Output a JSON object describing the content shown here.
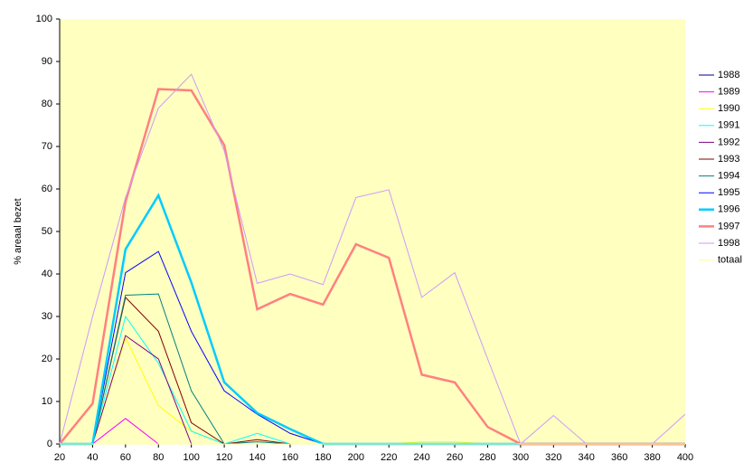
{
  "chart_data": {
    "type": "line",
    "y_label": "% areaal bezet",
    "x": [
      20,
      40,
      60,
      80,
      100,
      120,
      140,
      160,
      180,
      200,
      220,
      240,
      260,
      280,
      300,
      320,
      340,
      360,
      380,
      400
    ],
    "xlim": [
      20,
      400
    ],
    "xticks": [
      20,
      40,
      60,
      80,
      100,
      120,
      140,
      160,
      180,
      200,
      220,
      240,
      260,
      280,
      300,
      320,
      340,
      360,
      380,
      400
    ],
    "ylim": [
      0,
      100
    ],
    "yticks": [
      0,
      10,
      20,
      30,
      40,
      50,
      60,
      70,
      80,
      90,
      100
    ],
    "plot_background": "#ffffc0",
    "series": [
      {
        "name": "1988",
        "color": "#000080",
        "line_width": 1,
        "values": [
          0,
          0,
          0,
          0,
          0,
          0,
          0,
          0,
          0,
          0,
          0,
          0,
          0,
          0,
          0,
          0,
          0,
          0,
          0,
          0
        ]
      },
      {
        "name": "1989",
        "color": "#ff00ff",
        "line_width": 1,
        "values": [
          0,
          0,
          6,
          0,
          0,
          0,
          0,
          0,
          0,
          0,
          0,
          0,
          0,
          0,
          0,
          0,
          0,
          0,
          0,
          0
        ]
      },
      {
        "name": "1990",
        "color": "#ffff00",
        "line_width": 1,
        "values": [
          0,
          0,
          25,
          9,
          3,
          0,
          0,
          0,
          0,
          0,
          0,
          0.5,
          0.5,
          0,
          0,
          0,
          0,
          0,
          0,
          0
        ]
      },
      {
        "name": "1991",
        "color": "#00ffff",
        "line_width": 1,
        "values": [
          0,
          0,
          30,
          19,
          3,
          0,
          2.5,
          0,
          0,
          0,
          0,
          0,
          0,
          0,
          0,
          0,
          0,
          0,
          0,
          0
        ]
      },
      {
        "name": "1992",
        "color": "#800080",
        "line_width": 1,
        "values": [
          0,
          0,
          25.5,
          20,
          0,
          0,
          0,
          0,
          0,
          0,
          0,
          0,
          0,
          0,
          0,
          0,
          0,
          0,
          0,
          0
        ]
      },
      {
        "name": "1993",
        "color": "#800000",
        "line_width": 1,
        "values": [
          0,
          0,
          34.5,
          26.5,
          5,
          0,
          1,
          0,
          0,
          0,
          0,
          0,
          0,
          0,
          0,
          0,
          0,
          0,
          0,
          0
        ]
      },
      {
        "name": "1994",
        "color": "#008080",
        "line_width": 1,
        "values": [
          0,
          0,
          35,
          35.3,
          12.5,
          0,
          0.5,
          0,
          0,
          0,
          0,
          0,
          0,
          0,
          0,
          0,
          0,
          0,
          0,
          0
        ]
      },
      {
        "name": "1995",
        "color": "#0000ff",
        "line_width": 1,
        "values": [
          0,
          0,
          40.3,
          45.3,
          26.5,
          12.5,
          7,
          2.5,
          0,
          0,
          0,
          0,
          0,
          0,
          0,
          0,
          0,
          0,
          0,
          0
        ]
      },
      {
        "name": "1996",
        "color": "#00ccff",
        "line_width": 2.5,
        "values": [
          0,
          0,
          45.8,
          58.5,
          38,
          14.5,
          7.3,
          3.5,
          0,
          0,
          0,
          0,
          0,
          0,
          0,
          0,
          0,
          0,
          0,
          0
        ]
      },
      {
        "name": "1997",
        "color": "#ff8080",
        "line_width": 2.5,
        "values": [
          0,
          9.5,
          57,
          83.5,
          83.2,
          70.3,
          31.7,
          35.3,
          32.8,
          47,
          43.8,
          16.3,
          14.5,
          4,
          0,
          0,
          0,
          0,
          0,
          0
        ]
      },
      {
        "name": "1998",
        "color": "#cc99ff",
        "line_width": 1,
        "values": [
          0,
          30,
          58,
          79,
          87,
          69,
          37.8,
          40,
          37.5,
          58,
          59.8,
          34.5,
          40.3,
          20,
          0,
          6.7,
          0,
          0,
          0,
          7
        ]
      },
      {
        "name": "totaal",
        "color": "#ffff99",
        "line_width": 1,
        "values": [
          0,
          0,
          0,
          0,
          0,
          0,
          0,
          0,
          0,
          0,
          0,
          0,
          0,
          0,
          0,
          0,
          0,
          0,
          0,
          0
        ]
      }
    ]
  }
}
